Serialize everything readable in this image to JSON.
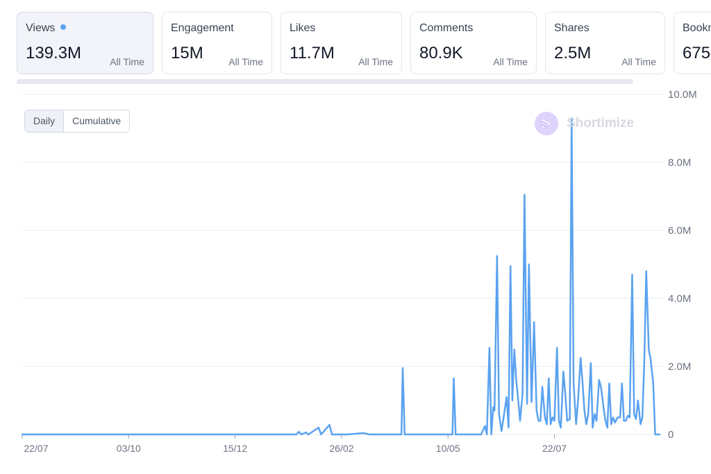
{
  "metrics": [
    {
      "label": "Views",
      "value": "139.3M",
      "period": "All Time",
      "active": true
    },
    {
      "label": "Engagement",
      "value": "15M",
      "period": "All Time",
      "active": false
    },
    {
      "label": "Likes",
      "value": "11.7M",
      "period": "All Time",
      "active": false
    },
    {
      "label": "Comments",
      "value": "80.9K",
      "period": "All Time",
      "active": false
    },
    {
      "label": "Shares",
      "value": "2.5M",
      "period": "All Time",
      "active": false
    },
    {
      "label": "Bookm",
      "value": "675",
      "period": "",
      "active": false
    }
  ],
  "toggle": {
    "daily": "Daily",
    "cumulative": "Cumulative"
  },
  "watermark": {
    "text": "Shortimize"
  },
  "colors": {
    "line": "#5aa2f0",
    "grid": "#e5e8ee",
    "accent_dot": "#5aa2f0"
  },
  "chart_data": {
    "type": "line",
    "title": "",
    "xlabel": "",
    "ylabel": "",
    "ylim": [
      0,
      10000000
    ],
    "y_ticks": [
      {
        "value": 0,
        "label": "0"
      },
      {
        "value": 2000000,
        "label": "2.0M"
      },
      {
        "value": 4000000,
        "label": "4.0M"
      },
      {
        "value": 6000000,
        "label": "6.0M"
      },
      {
        "value": 8000000,
        "label": "8.0M"
      },
      {
        "value": 10000000,
        "label": "10.0M"
      }
    ],
    "x_ticks": [
      {
        "pos": 0,
        "label": "22/07"
      },
      {
        "pos": 0.167,
        "label": "03/10"
      },
      {
        "pos": 0.334,
        "label": "15/12"
      },
      {
        "pos": 0.501,
        "label": "26/02"
      },
      {
        "pos": 0.668,
        "label": "10/05"
      },
      {
        "pos": 0.835,
        "label": "22/07"
      }
    ],
    "grid": true,
    "series": [
      {
        "values": [
          [
            0,
            0
          ],
          [
            0.43,
            0
          ],
          [
            0.434,
            80000
          ],
          [
            0.438,
            0
          ],
          [
            0.445,
            60000
          ],
          [
            0.449,
            0
          ],
          [
            0.465,
            200000
          ],
          [
            0.469,
            0
          ],
          [
            0.482,
            280000
          ],
          [
            0.486,
            0
          ],
          [
            0.51,
            0
          ],
          [
            0.535,
            40000
          ],
          [
            0.545,
            0
          ],
          [
            0.595,
            0
          ],
          [
            0.597,
            1950000
          ],
          [
            0.6,
            0
          ],
          [
            0.675,
            0
          ],
          [
            0.677,
            1650000
          ],
          [
            0.68,
            0
          ],
          [
            0.7,
            0
          ],
          [
            0.72,
            0
          ],
          [
            0.726,
            250000
          ],
          [
            0.729,
            0
          ],
          [
            0.733,
            2550000
          ],
          [
            0.736,
            0
          ],
          [
            0.739,
            800000
          ],
          [
            0.741,
            700000
          ],
          [
            0.745,
            5250000
          ],
          [
            0.748,
            600000
          ],
          [
            0.752,
            100000
          ],
          [
            0.76,
            1100000
          ],
          [
            0.763,
            200000
          ],
          [
            0.766,
            4950000
          ],
          [
            0.769,
            1000000
          ],
          [
            0.772,
            2500000
          ],
          [
            0.775,
            1600000
          ],
          [
            0.778,
            1050000
          ],
          [
            0.781,
            400000
          ],
          [
            0.785,
            1200000
          ],
          [
            0.788,
            7050000
          ],
          [
            0.792,
            900000
          ],
          [
            0.795,
            5000000
          ],
          [
            0.799,
            950000
          ],
          [
            0.803,
            3300000
          ],
          [
            0.807,
            700000
          ],
          [
            0.81,
            400000
          ],
          [
            0.813,
            400000
          ],
          [
            0.816,
            1400000
          ],
          [
            0.82,
            500000
          ],
          [
            0.823,
            300000
          ],
          [
            0.826,
            1650000
          ],
          [
            0.829,
            300000
          ],
          [
            0.832,
            500000
          ],
          [
            0.835,
            400000
          ],
          [
            0.839,
            2550000
          ],
          [
            0.842,
            400000
          ],
          [
            0.845,
            200000
          ],
          [
            0.849,
            1850000
          ],
          [
            0.852,
            1200000
          ],
          [
            0.855,
            400000
          ],
          [
            0.859,
            450000
          ],
          [
            0.862,
            9300000
          ],
          [
            0.865,
            1500000
          ],
          [
            0.869,
            300000
          ],
          [
            0.872,
            1000000
          ],
          [
            0.876,
            2250000
          ],
          [
            0.879,
            1550000
          ],
          [
            0.882,
            700000
          ],
          [
            0.885,
            300000
          ],
          [
            0.888,
            600000
          ],
          [
            0.892,
            2100000
          ],
          [
            0.895,
            200000
          ],
          [
            0.898,
            600000
          ],
          [
            0.901,
            400000
          ],
          [
            0.905,
            1600000
          ],
          [
            0.908,
            1400000
          ],
          [
            0.912,
            800000
          ],
          [
            0.915,
            400000
          ],
          [
            0.918,
            200000
          ],
          [
            0.921,
            1500000
          ],
          [
            0.924,
            300000
          ],
          [
            0.927,
            500000
          ],
          [
            0.93,
            350000
          ],
          [
            0.934,
            500000
          ],
          [
            0.938,
            500000
          ],
          [
            0.941,
            1500000
          ],
          [
            0.944,
            400000
          ],
          [
            0.947,
            400000
          ],
          [
            0.95,
            550000
          ],
          [
            0.953,
            500000
          ],
          [
            0.957,
            4700000
          ],
          [
            0.96,
            600000
          ],
          [
            0.963,
            450000
          ],
          [
            0.966,
            1000000
          ],
          [
            0.97,
            300000
          ],
          [
            0.973,
            500000
          ],
          [
            0.976,
            2200000
          ],
          [
            0.979,
            4800000
          ],
          [
            0.983,
            2500000
          ],
          [
            0.986,
            2200000
          ],
          [
            0.99,
            1500000
          ],
          [
            0.993,
            0
          ],
          [
            1.0,
            0
          ]
        ]
      }
    ]
  }
}
